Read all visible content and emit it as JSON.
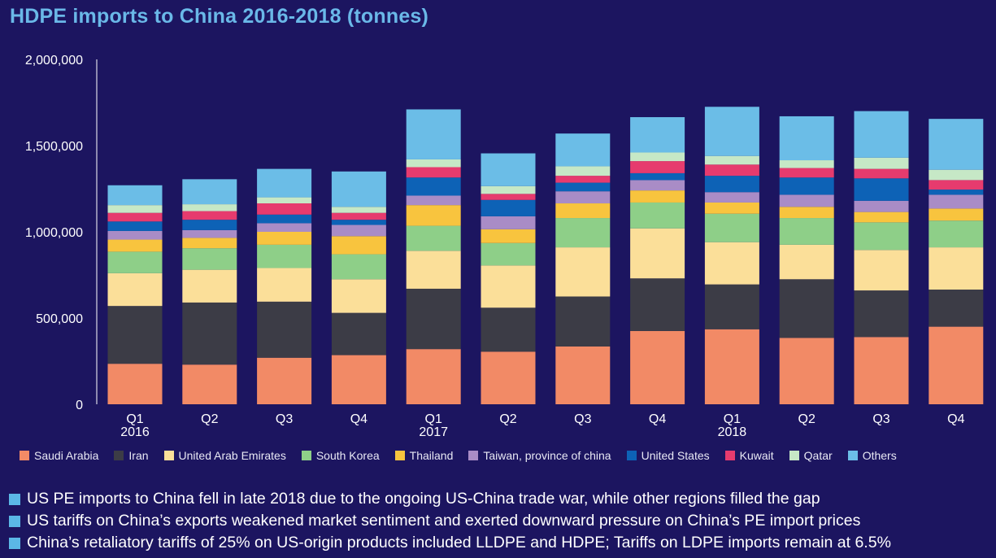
{
  "title": "HDPE imports to China 2016-2018 (tonnes)",
  "chart_data": {
    "type": "bar",
    "stacked": true,
    "title": "HDPE imports to China 2016-2018 (tonnes)",
    "xlabel": "",
    "ylabel": "",
    "ylim": [
      0,
      2000000
    ],
    "yticks": [
      "0",
      "500,000",
      "1,000,000",
      "1,500,000",
      "2,000,000"
    ],
    "yticks_values": [
      0,
      500000,
      1000000,
      1500000,
      2000000
    ],
    "grid": false,
    "legend_position": "bottom",
    "categories": [
      "Q1 2016",
      "Q2",
      "Q3",
      "Q4",
      "Q1 2017",
      "Q2",
      "Q3",
      "Q4",
      "Q1 2018",
      "Q2",
      "Q3",
      "Q4"
    ],
    "category_labels": [
      [
        "Q1",
        "2016"
      ],
      [
        "Q2"
      ],
      [
        "Q3"
      ],
      [
        "Q4"
      ],
      [
        "Q1",
        "2017"
      ],
      [
        "Q2"
      ],
      [
        "Q3"
      ],
      [
        "Q4"
      ],
      [
        "Q1",
        "2018"
      ],
      [
        "Q2"
      ],
      [
        "Q3"
      ],
      [
        "Q4"
      ]
    ],
    "series": [
      {
        "name": "Saudi Arabia",
        "color": "#f28a66",
        "values": [
          235000,
          230000,
          270000,
          285000,
          320000,
          305000,
          335000,
          425000,
          435000,
          385000,
          390000,
          450000
        ]
      },
      {
        "name": "Iran",
        "color": "#3c3c46",
        "values": [
          335000,
          360000,
          325000,
          245000,
          350000,
          255000,
          290000,
          305000,
          260000,
          340000,
          270000,
          215000
        ]
      },
      {
        "name": "United Arab Emirates",
        "color": "#fbdf99",
        "values": [
          190000,
          190000,
          195000,
          195000,
          220000,
          245000,
          285000,
          290000,
          245000,
          200000,
          235000,
          245000
        ]
      },
      {
        "name": "South Korea",
        "color": "#8ecf88",
        "values": [
          125000,
          125000,
          135000,
          145000,
          145000,
          130000,
          170000,
          150000,
          165000,
          155000,
          160000,
          155000
        ]
      },
      {
        "name": "Thailand",
        "color": "#f8c43e",
        "values": [
          70000,
          60000,
          75000,
          105000,
          120000,
          80000,
          85000,
          70000,
          65000,
          65000,
          60000,
          70000
        ]
      },
      {
        "name": "Taiwan, province of china",
        "color": "#a98cc6",
        "values": [
          50000,
          45000,
          50000,
          65000,
          55000,
          75000,
          70000,
          60000,
          60000,
          70000,
          65000,
          80000
        ]
      },
      {
        "name": "United States",
        "color": "#0d62b6",
        "values": [
          55000,
          60000,
          50000,
          30000,
          105000,
          95000,
          50000,
          40000,
          95000,
          100000,
          130000,
          30000
        ]
      },
      {
        "name": "Kuwait",
        "color": "#e63b6e",
        "values": [
          50000,
          50000,
          65000,
          40000,
          60000,
          35000,
          40000,
          70000,
          65000,
          55000,
          55000,
          55000
        ]
      },
      {
        "name": "Qatar",
        "color": "#c6e8c6",
        "values": [
          45000,
          40000,
          35000,
          35000,
          45000,
          45000,
          55000,
          50000,
          50000,
          45000,
          65000,
          60000
        ]
      },
      {
        "name": "Others",
        "color": "#6bbde7",
        "values": [
          115000,
          145000,
          165000,
          205000,
          290000,
          190000,
          190000,
          205000,
          285000,
          255000,
          270000,
          295000
        ]
      }
    ]
  },
  "bullets": [
    "US PE imports to China fell in late 2018 due to the ongoing US-China trade war, while other regions filled the gap",
    "US tariffs on China’s exports weakened market sentiment and exerted downward pressure on China’s PE import prices",
    "China’s retaliatory tariffs of 25% on US-origin products included LLDPE and HDPE; Tariffs on LDPE imports remain at 6.5%"
  ]
}
